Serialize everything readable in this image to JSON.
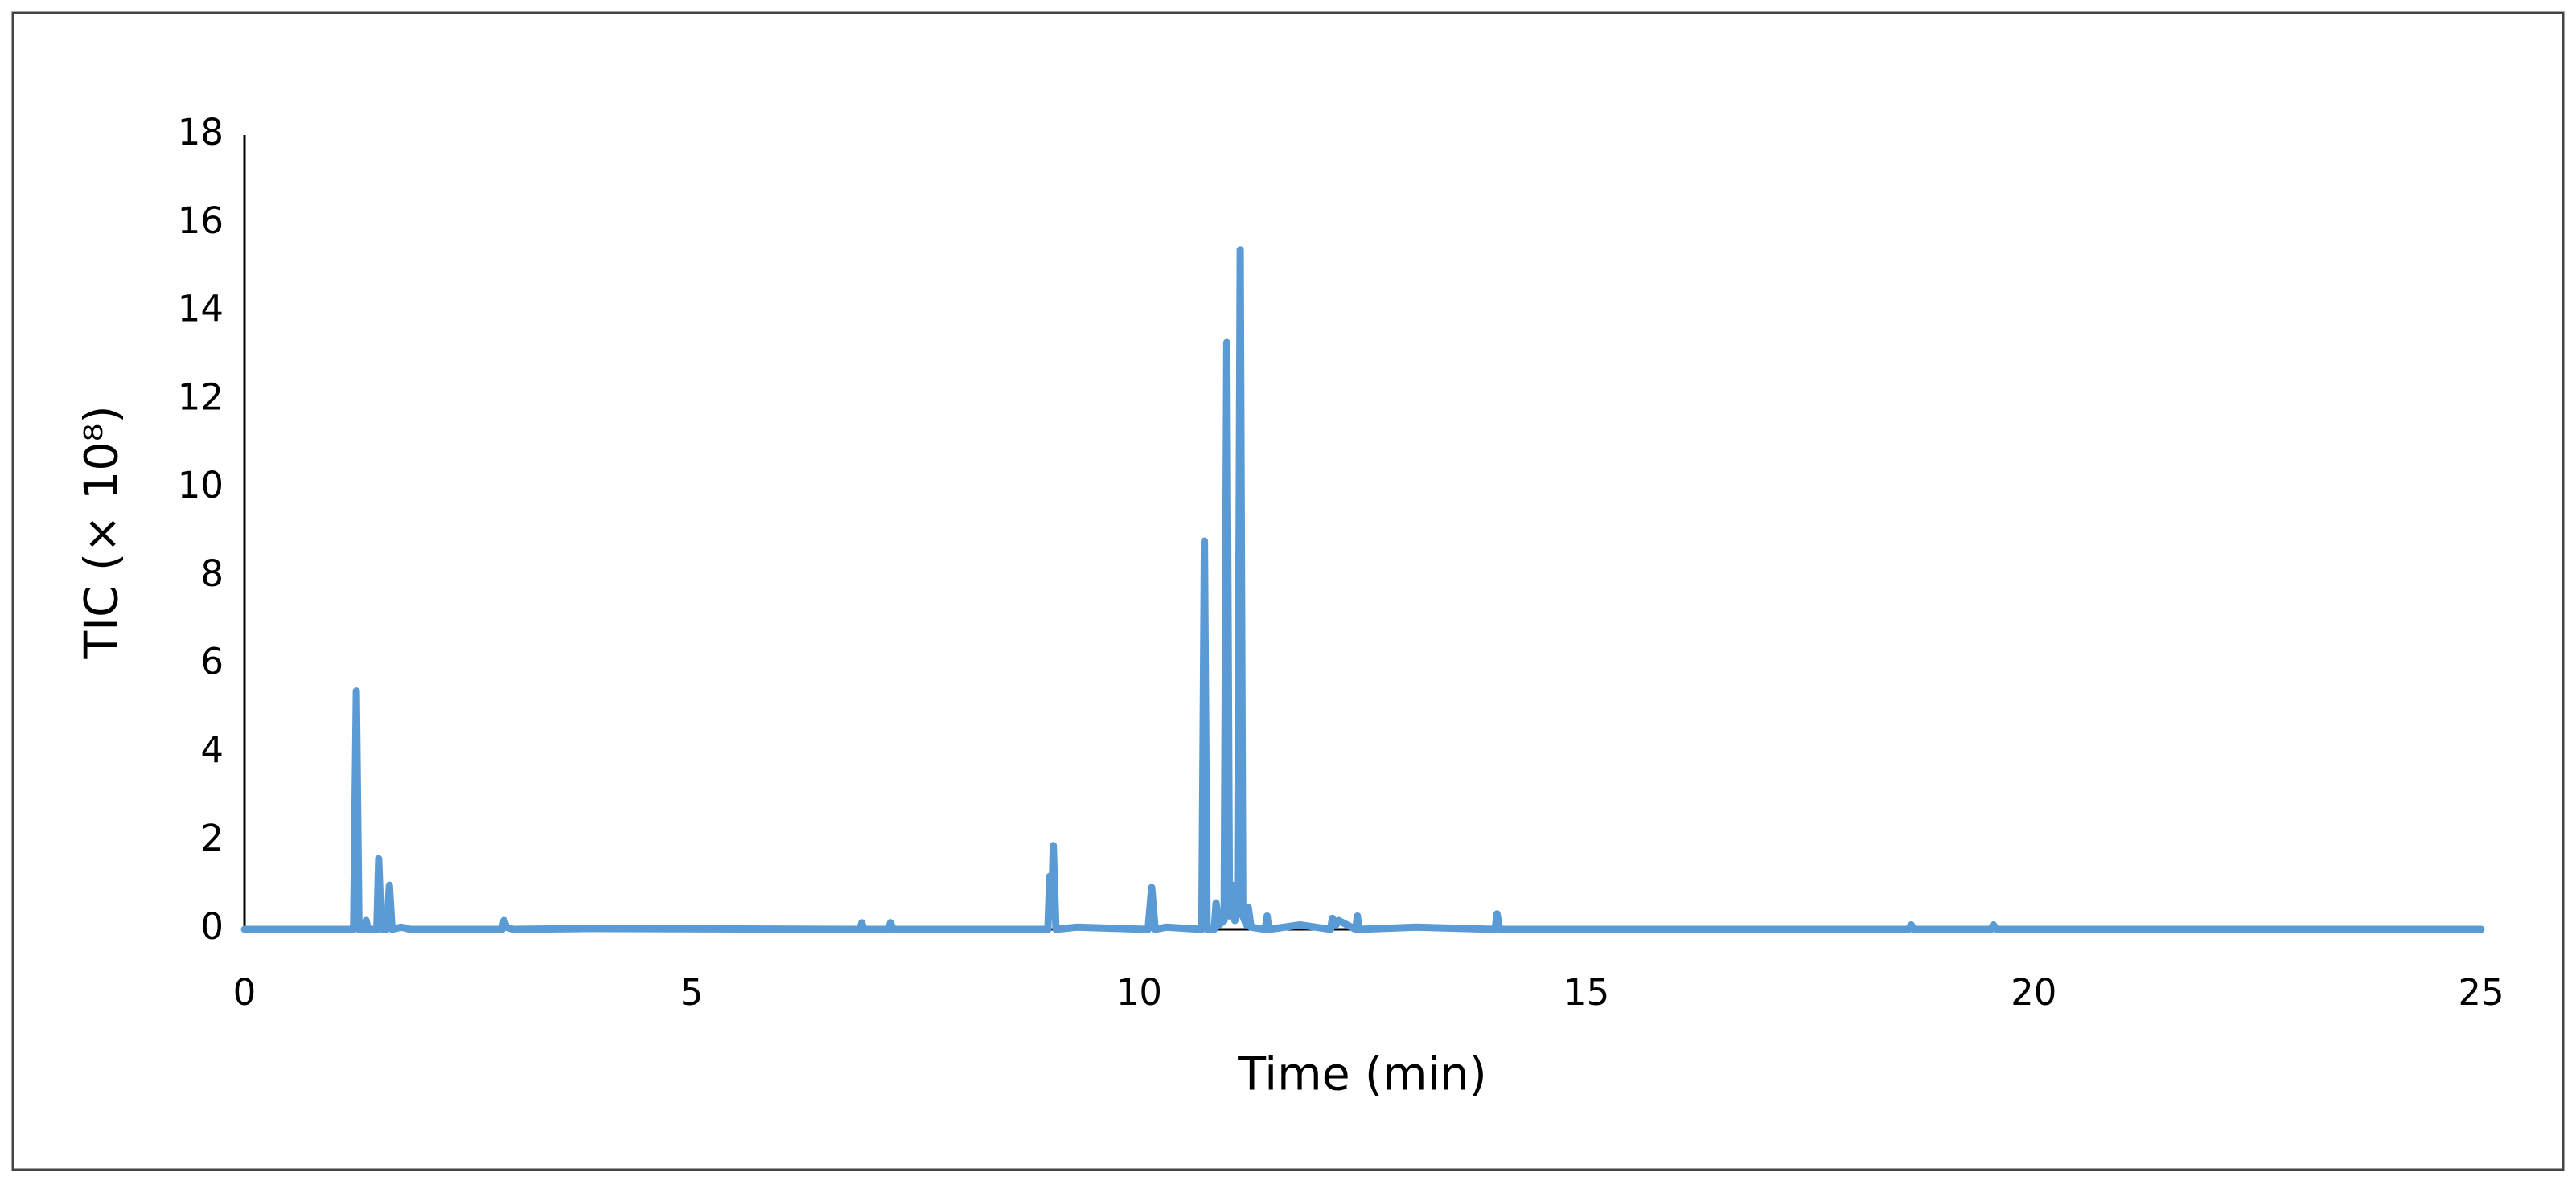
{
  "chart_data": {
    "type": "line",
    "x_label": "Time (min)",
    "y_label": "TIC (× 10⁸)",
    "x": [
      0,
      1.22,
      1.25,
      1.28,
      1.34,
      1.36,
      1.38,
      1.48,
      1.5,
      1.53,
      1.59,
      1.62,
      1.65,
      1.75,
      1.8,
      1.85,
      2.88,
      2.9,
      2.93,
      3.0,
      3.9,
      6.88,
      6.9,
      6.92,
      7.2,
      7.22,
      7.25,
      7.8,
      8.98,
      9.0,
      9.02,
      9.04,
      9.07,
      9.3,
      10.1,
      10.14,
      10.18,
      10.3,
      10.7,
      10.73,
      10.76,
      10.84,
      10.86,
      10.89,
      10.95,
      10.98,
      11.01,
      11.04,
      11.07,
      11.1,
      11.13,
      11.16,
      11.2,
      11.22,
      11.25,
      11.41,
      11.43,
      11.45,
      11.8,
      12.14,
      12.16,
      12.2,
      12.23,
      12.42,
      12.44,
      12.46,
      13.1,
      13.98,
      14.0,
      14.03,
      14.1,
      18.6,
      18.63,
      18.66,
      19.52,
      19.55,
      19.58,
      25
    ],
    "values": [
      0,
      0,
      5.4,
      0,
      0,
      0.2,
      0,
      0,
      1.6,
      0,
      0,
      1.0,
      0,
      0.05,
      0.03,
      0,
      0,
      0.2,
      0.05,
      0,
      0.02,
      0,
      0.15,
      0,
      0,
      0.15,
      0,
      0,
      0,
      1.2,
      0.3,
      1.9,
      0,
      0.05,
      0,
      0.95,
      0,
      0.05,
      0,
      8.8,
      0,
      0,
      0.6,
      0.1,
      0.2,
      13.3,
      0.3,
      1.0,
      0.2,
      0.4,
      15.4,
      0.3,
      0.1,
      0.5,
      0.05,
      0,
      0.3,
      0,
      0.1,
      0,
      0.25,
      0.1,
      0.2,
      0,
      0.3,
      0,
      0.05,
      0,
      0.35,
      0,
      0,
      0,
      0.1,
      0,
      0,
      0.1,
      0,
      0
    ],
    "color": "#5b9bd5",
    "xlim": [
      0,
      25
    ],
    "xticks": [
      0,
      5,
      10,
      15,
      20,
      25
    ],
    "ylim": [
      0,
      18
    ],
    "yticks": [
      0,
      2,
      4,
      6,
      8,
      10,
      12,
      14,
      16,
      18
    ]
  }
}
